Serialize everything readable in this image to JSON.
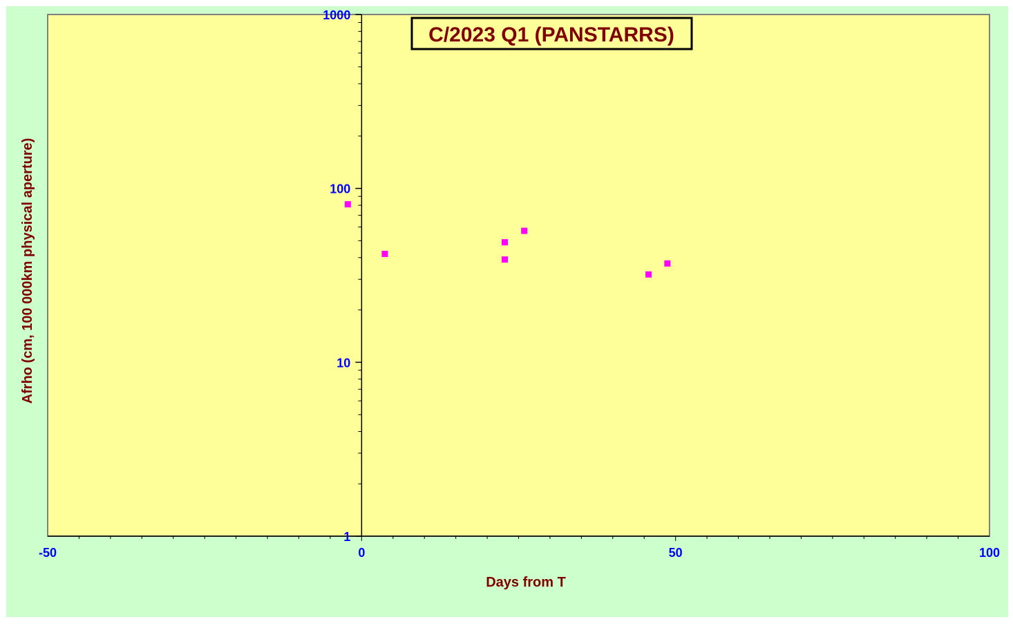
{
  "colors": {
    "outer_background": "#ccffcc",
    "plot_background": "#ffff99",
    "plot_border": "#808080",
    "tick_label_color": "#0000ff",
    "axis_title_color": "#800000",
    "title_color": "#800000",
    "marker_color": "#ff00ff"
  },
  "chart_data": {
    "type": "scatter",
    "title": "C/2023 Q1 (PANSTARRS)",
    "xlabel": "Days from  T",
    "ylabel": "Afrho  (cm,  100 000km  physical  aperture)",
    "xlim": [
      -50,
      100
    ],
    "ylim": [
      1,
      1000
    ],
    "yscale": "log",
    "grid": false,
    "x_ticks": [
      -50,
      0,
      50,
      100
    ],
    "x_tick_labels": [
      "-50",
      "0",
      "50",
      "100"
    ],
    "y_ticks": [
      1,
      10,
      100,
      1000
    ],
    "y_tick_labels": [
      "1",
      "10",
      "100",
      "1000"
    ],
    "series": [
      {
        "marker": "square",
        "points": [
          {
            "x": -2.2,
            "y": 81
          },
          {
            "x": 3.7,
            "y": 42
          },
          {
            "x": 22.8,
            "y": 49
          },
          {
            "x": 22.8,
            "y": 39
          },
          {
            "x": 25.9,
            "y": 57
          },
          {
            "x": 45.7,
            "y": 32
          },
          {
            "x": 48.7,
            "y": 37
          }
        ]
      }
    ]
  }
}
